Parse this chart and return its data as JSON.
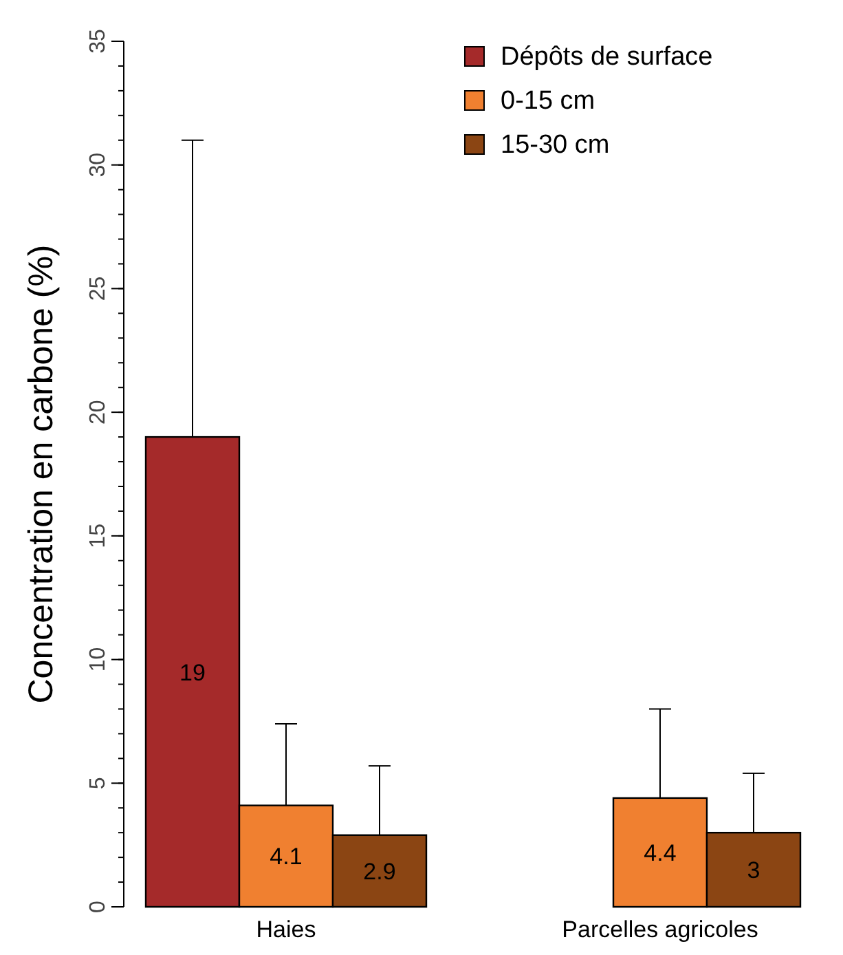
{
  "chart_data": {
    "type": "bar",
    "ylabel": "Concentration en carbone (%)",
    "categories": [
      "Haies",
      "Parcelles agricoles"
    ],
    "series": [
      {
        "name": "Dépôts de surface",
        "color": "#a52a2a",
        "values": [
          19,
          null
        ],
        "errors": [
          [
            19,
            31
          ],
          null
        ]
      },
      {
        "name": "0-15 cm",
        "color": "#f08030",
        "values": [
          4.1,
          4.4
        ],
        "errors": [
          [
            4.1,
            7.4
          ],
          [
            4.4,
            8
          ]
        ]
      },
      {
        "name": "15-30 cm",
        "color": "#8b4513",
        "values": [
          2.9,
          3
        ],
        "errors": [
          [
            2.9,
            5.7
          ],
          [
            3,
            5.4
          ]
        ]
      }
    ],
    "ylim": [
      0,
      35
    ],
    "yticks": [
      0,
      5,
      10,
      15,
      20,
      25,
      30,
      35
    ],
    "data_labels": true,
    "legend": "top right",
    "grid": false
  }
}
